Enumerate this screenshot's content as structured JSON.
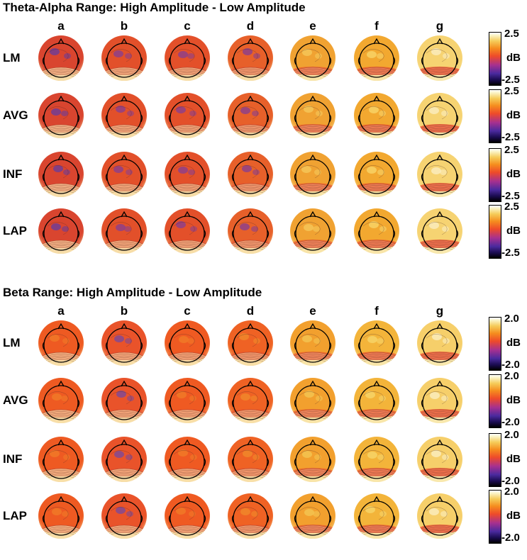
{
  "sections": [
    {
      "title": "Theta-Alpha Range: High Amplitude - Low Amplitude",
      "columns": [
        "a",
        "b",
        "c",
        "d",
        "e",
        "f",
        "g"
      ],
      "rows": [
        "LM",
        "AVG",
        "INF",
        "LAP"
      ],
      "colorbar": {
        "max": "2.5",
        "min": "-2.5",
        "unit": "dB"
      }
    },
    {
      "title": "Beta Range: High Amplitude - Low Amplitude",
      "columns": [
        "a",
        "b",
        "c",
        "d",
        "e",
        "f",
        "g"
      ],
      "rows": [
        "LM",
        "AVG",
        "INF",
        "LAP"
      ],
      "colorbar": {
        "max": "2.0",
        "min": "-2.0",
        "unit": "dB"
      }
    }
  ],
  "colors": {
    "background": "#ffffff",
    "colormap": [
      "#000000",
      "#1a0b4f",
      "#4a2a9e",
      "#a63090",
      "#ee4a2a",
      "#f58d1e",
      "#f5cc5a",
      "#fbf4c8",
      "#ffffff"
    ]
  }
}
